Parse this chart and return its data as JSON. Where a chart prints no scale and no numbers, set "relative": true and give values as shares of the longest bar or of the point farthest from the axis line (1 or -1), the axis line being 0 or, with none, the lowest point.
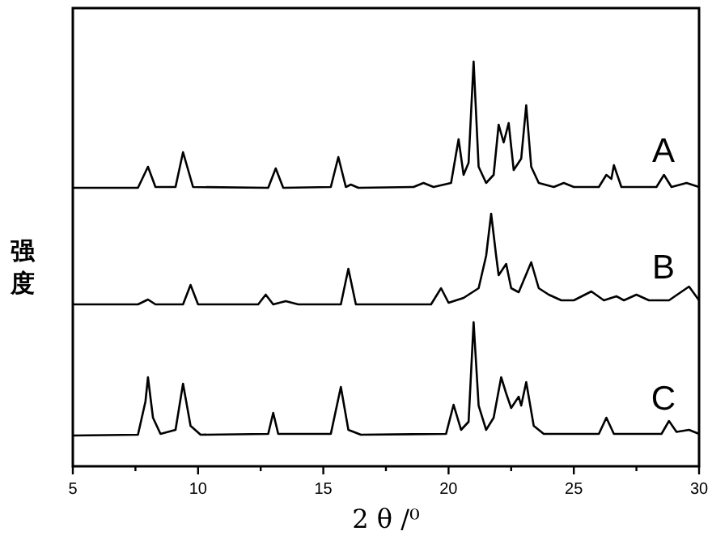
{
  "chart_data": {
    "type": "line",
    "relative": true,
    "xlabel": "2 θ /⁰",
    "ylabel": "强度",
    "xlim": [
      5,
      30
    ],
    "xticks": [
      5,
      {
        "value": 7.5,
        "label": null
      },
      10,
      {
        "value": 12.5,
        "label": null
      },
      15,
      {
        "value": 17.5,
        "label": null
      },
      20,
      {
        "value": 22.5,
        "label": null
      },
      25,
      {
        "value": 27.5,
        "label": null
      },
      30
    ],
    "series": [
      {
        "name": "A",
        "color": "#000000",
        "x": [
          5,
          7.6,
          8.0,
          8.3,
          9.1,
          9.4,
          9.8,
          12.8,
          13.1,
          13.4,
          15.3,
          15.6,
          15.9,
          16.1,
          16.4,
          18.6,
          19.0,
          19.4,
          20.1,
          20.4,
          20.6,
          20.8,
          21.0,
          21.2,
          21.5,
          21.8,
          22.0,
          22.2,
          22.4,
          22.6,
          22.9,
          23.1,
          23.3,
          23.6,
          24.2,
          24.6,
          25.0,
          26.0,
          26.3,
          26.5,
          26.6,
          26.9,
          28.3,
          28.6,
          28.9,
          29.5,
          30
        ],
        "values": [
          0.688,
          0.688,
          0.74,
          0.69,
          0.69,
          0.776,
          0.69,
          0.688,
          0.736,
          0.688,
          0.69,
          0.764,
          0.69,
          0.696,
          0.688,
          0.69,
          0.7,
          0.69,
          0.7,
          0.808,
          0.72,
          0.75,
          1,
          0.74,
          0.7,
          0.72,
          0.844,
          0.8,
          0.848,
          0.732,
          0.76,
          0.892,
          0.74,
          0.7,
          0.69,
          0.7,
          0.69,
          0.69,
          0.72,
          0.71,
          0.744,
          0.69,
          0.69,
          0.72,
          0.69,
          0.7,
          0.69
        ]
      },
      {
        "name": "B",
        "color": "#000000",
        "x": [
          5,
          7.6,
          8.0,
          8.3,
          9.4,
          9.7,
          10.0,
          12.4,
          12.7,
          13.0,
          13.5,
          14.0,
          15.7,
          16.0,
          16.3,
          19.3,
          19.7,
          20.0,
          20.6,
          21.2,
          21.5,
          21.7,
          21.9,
          22.0,
          22.3,
          22.5,
          22.8,
          23.3,
          23.6,
          24.0,
          24.5,
          25.0,
          25.7,
          26.2,
          26.7,
          27.0,
          27.5,
          28.0,
          28.8,
          29.6,
          30
        ],
        "values": [
          0.4,
          0.4,
          0.412,
          0.4,
          0.4,
          0.448,
          0.4,
          0.4,
          0.424,
          0.4,
          0.408,
          0.4,
          0.4,
          0.488,
          0.4,
          0.4,
          0.44,
          0.404,
          0.416,
          0.44,
          0.52,
          0.624,
          0.52,
          0.472,
          0.5,
          0.44,
          0.43,
          0.504,
          0.44,
          0.424,
          0.41,
          0.41,
          0.432,
          0.41,
          0.42,
          0.41,
          0.424,
          0.41,
          0.41,
          0.444,
          0.41
        ]
      },
      {
        "name": "C",
        "color": "#000000",
        "x": [
          5,
          7.6,
          7.9,
          8.0,
          8.2,
          8.5,
          9.1,
          9.4,
          9.7,
          10.1,
          12.8,
          13.0,
          13.2,
          15.3,
          15.7,
          16.0,
          16.5,
          19.9,
          20.2,
          20.5,
          20.8,
          21.0,
          21.2,
          21.5,
          21.8,
          22.1,
          22.3,
          22.5,
          22.8,
          22.9,
          23.1,
          23.4,
          23.8,
          25.0,
          26.0,
          26.3,
          26.6,
          28.5,
          28.8,
          29.1,
          29.6,
          30
        ],
        "values": [
          0.076,
          0.078,
          0.16,
          0.22,
          0.12,
          0.08,
          0.09,
          0.204,
          0.1,
          0.078,
          0.08,
          0.132,
          0.08,
          0.08,
          0.196,
          0.09,
          0.078,
          0.08,
          0.152,
          0.09,
          0.11,
          0.356,
          0.15,
          0.09,
          0.12,
          0.22,
          0.18,
          0.144,
          0.172,
          0.15,
          0.208,
          0.1,
          0.08,
          0.08,
          0.08,
          0.12,
          0.08,
          0.08,
          0.112,
          0.085,
          0.09,
          0.08
        ]
      }
    ]
  }
}
